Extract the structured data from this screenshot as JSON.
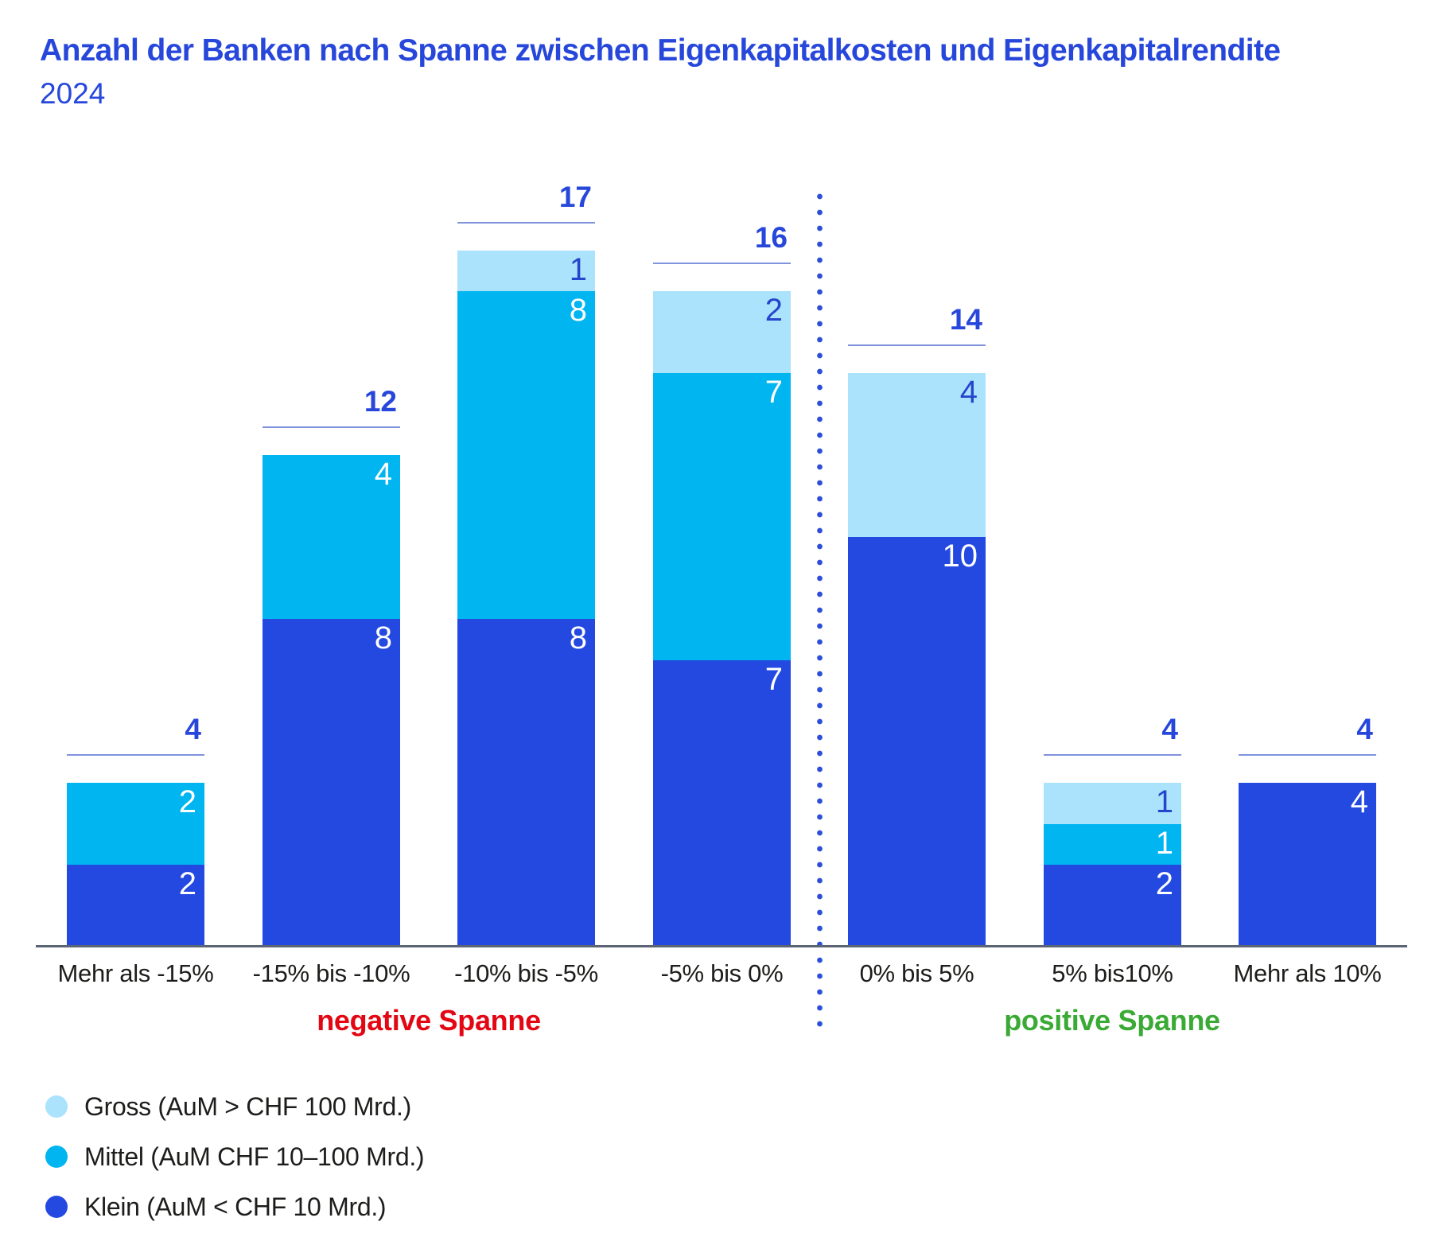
{
  "header": {
    "title": "Anzahl der Banken nach Spanne zwischen Eigenkapitalkosten und Eigenkapitalrendite",
    "subtitle": "2024"
  },
  "chart_data": {
    "type": "bar",
    "subtype": "stacked-vertical",
    "title": "Anzahl der Banken nach Spanne zwischen Eigenkapitalkosten und Eigenkapitalrendite",
    "subtitle": "2024",
    "xlabel": "",
    "ylabel": "",
    "grid": false,
    "ylim": [
      0,
      17
    ],
    "legend_position": "bottom-left",
    "categories": [
      "Mehr als -15%",
      "-15% bis -10%",
      "-10% bis -5%",
      "-5% bis 0%",
      "0% bis 5%",
      "5% bis10%",
      "Mehr als 10%"
    ],
    "series": [
      {
        "key": "klein",
        "name": "Klein (AuM < CHF 10 Mrd.)",
        "color": "#2349E1",
        "label_color": "#FFFFFF",
        "values": [
          2,
          8,
          8,
          7,
          10,
          2,
          4
        ]
      },
      {
        "key": "mittel",
        "name": "Mittel (AuM CHF 10–100 Mrd.)",
        "color": "#00B5F0",
        "label_color": "#FFFFFF",
        "values": [
          2,
          4,
          8,
          7,
          0,
          1,
          0
        ]
      },
      {
        "key": "gross",
        "name": "Gross (AuM > CHF 100 Mrd.)",
        "color": "#AAE3FB",
        "label_color": "#2745CC",
        "values": [
          0,
          0,
          1,
          2,
          4,
          1,
          0
        ]
      }
    ],
    "totals": [
      4,
      12,
      17,
      16,
      14,
      4,
      4
    ],
    "zones": [
      {
        "label": "negative Spanne",
        "color": "#E30613",
        "from_category": 0,
        "to_category": 3
      },
      {
        "label": "positive Spanne",
        "color": "#3AAA35",
        "from_category": 4,
        "to_category": 6
      }
    ],
    "divider_after_category": 3,
    "legend": [
      {
        "key": "gross",
        "label": "Gross (AuM > CHF 100 Mrd.)",
        "color": "#AAE3FB"
      },
      {
        "key": "mittel",
        "label": "Mittel (AuM CHF 10–100 Mrd.)",
        "color": "#00B5F0"
      },
      {
        "key": "klein",
        "label": "Klein (AuM < CHF 10 Mrd.)",
        "color": "#2349E1"
      }
    ]
  }
}
